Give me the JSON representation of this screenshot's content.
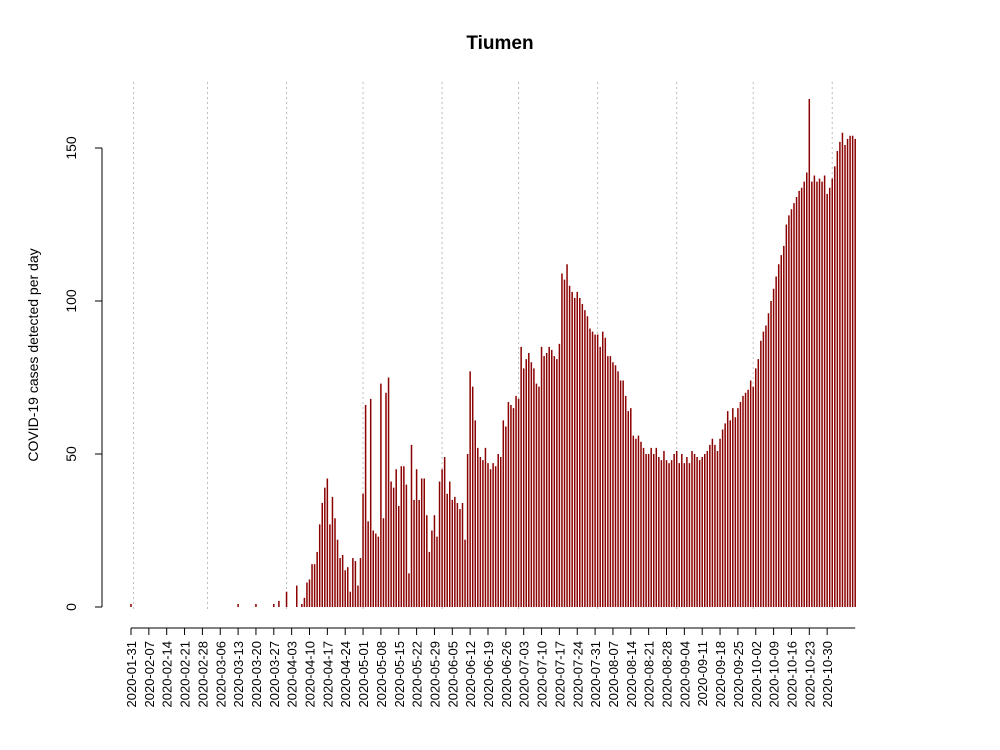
{
  "chart_data": {
    "type": "bar",
    "title": "Tiumen",
    "xlabel": "",
    "ylabel": "COVID-19 cases detected per day",
    "ylim": [
      0,
      170
    ],
    "yticks": [
      0,
      50,
      100,
      150
    ],
    "grid": "vertical dotted lines at month starts",
    "bar_color": "#8b0000",
    "grid_color": "#bebebe",
    "x_start": "2020-01-31",
    "x_end": "2020-11-06",
    "x_tick_labels": [
      "2020-01-31",
      "2020-02-07",
      "2020-02-14",
      "2020-02-21",
      "2020-02-28",
      "2020-03-06",
      "2020-03-13",
      "2020-03-20",
      "2020-03-27",
      "2020-04-03",
      "2020-04-10",
      "2020-04-17",
      "2020-04-24",
      "2020-05-01",
      "2020-05-08",
      "2020-05-15",
      "2020-05-22",
      "2020-05-29",
      "2020-06-05",
      "2020-06-12",
      "2020-06-19",
      "2020-06-26",
      "2020-07-03",
      "2020-07-10",
      "2020-07-17",
      "2020-07-24",
      "2020-07-31",
      "2020-08-07",
      "2020-08-14",
      "2020-08-21",
      "2020-08-28",
      "2020-09-04",
      "2020-09-11",
      "2020-09-18",
      "2020-09-25",
      "2020-10-02",
      "2020-10-09",
      "2020-10-16",
      "2020-10-23",
      "2020-10-30"
    ],
    "gridline_dates": [
      "2020-02-01",
      "2020-03-01",
      "2020-04-01",
      "2020-05-01",
      "2020-06-01",
      "2020-07-01",
      "2020-08-01",
      "2020-09-01",
      "2020-10-01",
      "2020-11-01"
    ],
    "values": [
      1,
      0,
      0,
      0,
      0,
      0,
      0,
      0,
      0,
      0,
      0,
      0,
      0,
      0,
      0,
      0,
      0,
      0,
      0,
      0,
      0,
      0,
      0,
      0,
      0,
      0,
      0,
      0,
      0,
      0,
      0,
      0,
      0,
      0,
      0,
      0,
      0,
      0,
      0,
      0,
      0,
      0,
      1,
      0,
      0,
      0,
      0,
      0,
      0,
      1,
      0,
      0,
      0,
      0,
      0,
      0,
      1,
      0,
      2,
      0,
      0,
      5,
      0,
      0,
      0,
      7,
      0,
      1,
      3,
      8,
      9,
      14,
      14,
      18,
      27,
      34,
      39,
      42,
      27,
      36,
      29,
      22,
      16,
      17,
      12,
      13,
      5,
      16,
      15,
      7,
      16,
      37,
      66,
      28,
      68,
      25,
      24,
      23,
      73,
      29,
      70,
      75,
      41,
      39,
      45,
      33,
      46,
      46,
      40,
      11,
      53,
      35,
      45,
      35,
      42,
      42,
      30,
      18,
      25,
      30,
      23,
      41,
      45,
      49,
      37,
      41,
      35,
      36,
      34,
      32,
      34,
      22,
      50,
      77,
      72,
      61,
      52,
      49,
      48,
      52,
      47,
      45,
      47,
      46,
      50,
      49,
      61,
      59,
      67,
      66,
      65,
      69,
      68,
      85,
      78,
      81,
      83,
      80,
      78,
      73,
      72,
      85,
      82,
      83,
      85,
      84,
      82,
      81,
      86,
      109,
      107,
      112,
      105,
      103,
      101,
      103,
      101,
      99,
      97,
      95,
      91,
      90,
      89,
      89,
      85,
      90,
      88,
      82,
      82,
      80,
      79,
      77,
      74,
      74,
      69,
      64,
      65,
      56,
      55,
      56,
      54,
      52,
      50,
      50,
      52,
      50,
      52,
      49,
      48,
      51,
      48,
      47,
      48,
      50,
      51,
      47,
      50,
      47,
      49,
      47,
      51,
      50,
      49,
      48,
      49,
      50,
      51,
      53,
      55,
      53,
      51,
      55,
      58,
      60,
      64,
      61,
      65,
      62,
      65,
      67,
      69,
      70,
      71,
      74,
      72,
      78,
      81,
      87,
      90,
      92,
      96,
      100,
      104,
      108,
      112,
      115,
      118,
      125,
      128,
      130,
      132,
      134,
      136,
      137,
      139,
      142,
      166,
      139,
      141,
      139,
      140,
      139,
      141,
      135,
      137,
      140,
      144,
      149,
      152,
      155,
      151,
      153,
      154,
      154,
      153
    ]
  }
}
